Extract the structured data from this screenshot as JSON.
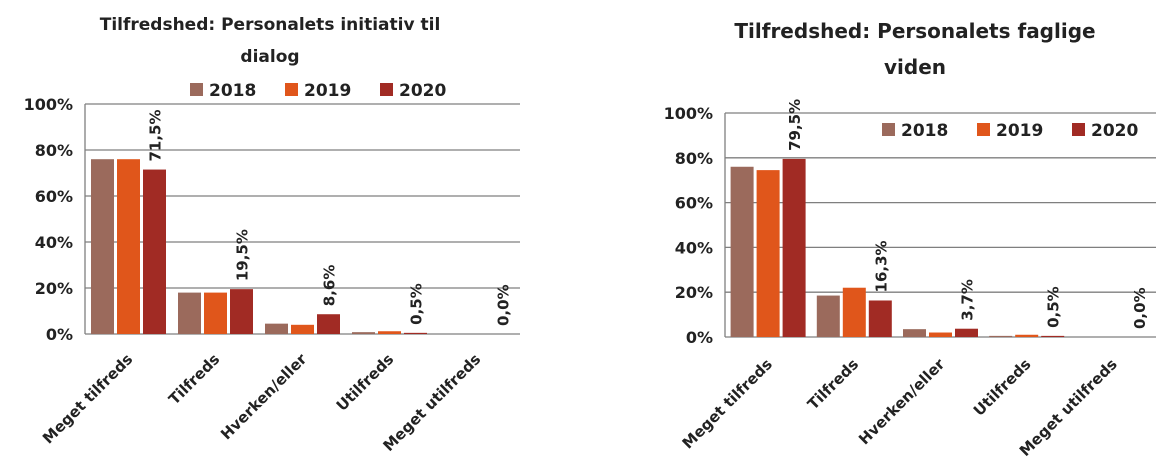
{
  "colors": {
    "2018": "#9b6a5c",
    "2019": "#e0561b",
    "2020": "#a12b24",
    "grid": "#7f7f7f"
  },
  "chart_data": [
    {
      "type": "bar",
      "title_lines": [
        "Tilfredshed: Personalets initiativ til",
        "dialog"
      ],
      "categories": [
        "Meget tilfreds",
        "Tilfreds",
        "Hverken/eller",
        "Utilfreds",
        "Meget utilfreds"
      ],
      "series": [
        {
          "name": "2018",
          "values": [
            76,
            18,
            4.5,
            0.8,
            0
          ]
        },
        {
          "name": "2019",
          "values": [
            76,
            18,
            4,
            1.2,
            0
          ]
        },
        {
          "name": "2020",
          "values": [
            71.5,
            19.5,
            8.6,
            0.5,
            0
          ]
        }
      ],
      "data_labels": [
        "71,5%",
        "19,5%",
        "8,6%",
        "0,5%",
        "0,0%"
      ],
      "y_ticks": [
        "0%",
        "20%",
        "40%",
        "60%",
        "80%",
        "100%"
      ],
      "ylim": [
        0,
        100
      ],
      "grid": true,
      "legend_position": "top"
    },
    {
      "type": "bar",
      "title_lines": [
        "Tilfredshed: Personalets faglige",
        "viden"
      ],
      "categories": [
        "Meget tilfreds",
        "Tilfreds",
        "Hverken/eller",
        "Utilfreds",
        "Meget utilfreds"
      ],
      "series": [
        {
          "name": "2018",
          "values": [
            76,
            18.5,
            3.5,
            0.5,
            0
          ]
        },
        {
          "name": "2019",
          "values": [
            74.5,
            22,
            2,
            1,
            0
          ]
        },
        {
          "name": "2020",
          "values": [
            79.5,
            16.3,
            3.7,
            0.5,
            0
          ]
        }
      ],
      "data_labels": [
        "79,5%",
        "16,3%",
        "3,7%",
        "0,5%",
        "0,0%"
      ],
      "y_ticks": [
        "0%",
        "20%",
        "40%",
        "60%",
        "80%",
        "100%"
      ],
      "ylim": [
        0,
        100
      ],
      "grid": true,
      "legend_position": "top-right"
    }
  ]
}
